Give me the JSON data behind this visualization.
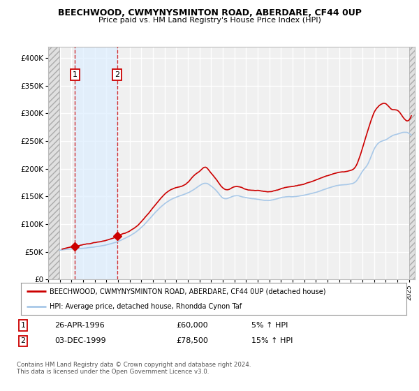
{
  "title": "BEECHWOOD, CWMYNYSMINTON ROAD, ABERDARE, CF44 0UP",
  "subtitle": "Price paid vs. HM Land Registry's House Price Index (HPI)",
  "legend_line1": "BEECHWOOD, CWMYNYSMINTON ROAD, ABERDARE, CF44 0UP (detached house)",
  "legend_line2": "HPI: Average price, detached house, Rhondda Cynon Taf",
  "footer": "Contains HM Land Registry data © Crown copyright and database right 2024.\nThis data is licensed under the Open Government Licence v3.0.",
  "transaction1_label": "1",
  "transaction1_date": "26-APR-1996",
  "transaction1_price": "£60,000",
  "transaction1_hpi": "5% ↑ HPI",
  "transaction2_label": "2",
  "transaction2_date": "03-DEC-1999",
  "transaction2_price": "£78,500",
  "transaction2_hpi": "15% ↑ HPI",
  "hpi_color": "#a8c8e8",
  "price_color": "#cc0000",
  "marker_color": "#cc0000",
  "dashed_line_color": "#cc0000",
  "shaded_color": "#ddeeff",
  "xlim_left": 1994.0,
  "xlim_right": 2025.5,
  "ylim_bottom": 0,
  "ylim_top": 420000,
  "yticks": [
    0,
    50000,
    100000,
    150000,
    200000,
    250000,
    300000,
    350000,
    400000
  ],
  "ytick_labels": [
    "£0",
    "£50K",
    "£100K",
    "£150K",
    "£200K",
    "£250K",
    "£300K",
    "£350K",
    "£400K"
  ],
  "transaction1_x": 1996.3,
  "transaction1_y": 60000,
  "transaction2_x": 1999.92,
  "transaction2_y": 78500,
  "background_color": "#ffffff",
  "plot_bg_color": "#f0f0f0",
  "grid_color": "#ffffff"
}
